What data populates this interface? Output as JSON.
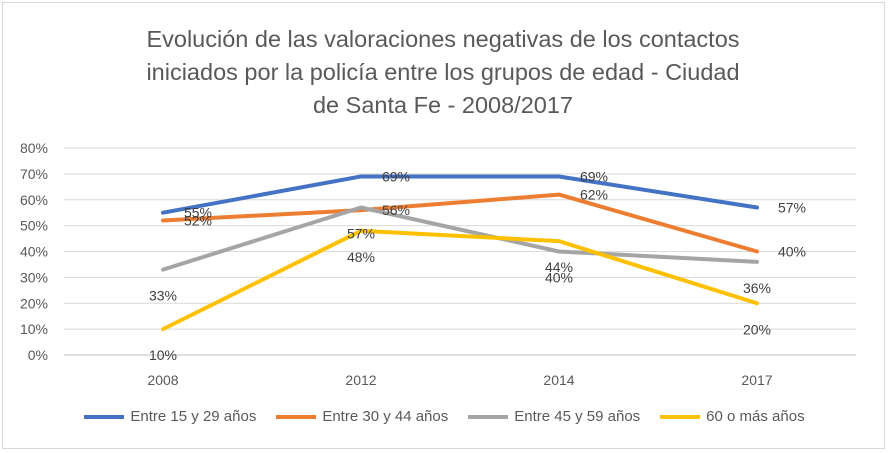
{
  "chart_data": {
    "type": "line",
    "title": [
      "Evolución de las valoraciones negativas de los contactos",
      "iniciados por la policía entre los grupos de edad - Ciudad",
      "de Santa Fe - 2008/2017"
    ],
    "categories": [
      "2008",
      "2012",
      "2014",
      "2017"
    ],
    "ylim": [
      0,
      80
    ],
    "yticks": [
      "0%",
      "10%",
      "20%",
      "30%",
      "40%",
      "50%",
      "60%",
      "70%",
      "80%"
    ],
    "grid": true,
    "legend_position": "bottom",
    "series": [
      {
        "name": "Entre 15 y 29 años",
        "color": "#4472C4",
        "values": [
          55,
          69,
          69,
          57
        ],
        "labels": [
          "55%",
          "69%",
          "69%",
          "57%"
        ]
      },
      {
        "name": "Entre 30 y 44 años",
        "color": "#ED7D31",
        "values": [
          52,
          56,
          62,
          40
        ],
        "labels": [
          "52%",
          "56%",
          "62%",
          "40%"
        ]
      },
      {
        "name": "Entre 45 y 59 años",
        "color": "#A5A5A5",
        "values": [
          33,
          57,
          40,
          36
        ],
        "labels": [
          "33%",
          "57%",
          "40%",
          "36%"
        ]
      },
      {
        "name": "60 o más años",
        "color": "#FFC000",
        "values": [
          10,
          48,
          44,
          20
        ],
        "labels": [
          "10%",
          "48%",
          "44%",
          "20%"
        ]
      }
    ]
  }
}
